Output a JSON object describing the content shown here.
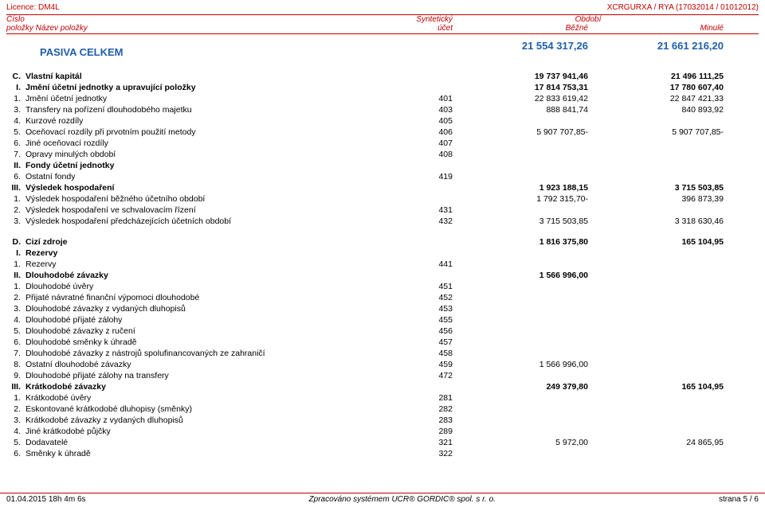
{
  "top_left": "Licence: DM4L",
  "top_right": "XCRGURXA / RYA (17032014 / 01012012)",
  "header": {
    "r1_c1": "Číslo",
    "r1_c2": "Syntetický",
    "r1_c3": "Období",
    "r2_c1": "položky   Název položky",
    "r2_c2": "účet",
    "r2_c3a": "Běžné",
    "r2_c3b": "Minulé"
  },
  "section_title": "PASIVA CELKEM",
  "section_cur": "21 554 317,26",
  "section_prev": "21 661 216,20",
  "rows": [
    {
      "idx": "C.",
      "name": "Vlastní kapitál",
      "acct": "",
      "cur": "19 737 941,46",
      "prev": "21 496 111,25",
      "bold": true
    },
    {
      "idx": "I.",
      "name": "Jmění účetní jednotky a upravující položky",
      "acct": "",
      "cur": "17 814 753,31",
      "prev": "17 780 607,40",
      "bold": true
    },
    {
      "idx": "1.",
      "name": "Jmění účetní jednotky",
      "acct": "401",
      "cur": "22 833 619,42",
      "prev": "22 847 421,33",
      "bold": false
    },
    {
      "idx": "3.",
      "name": "Transfery na pořízení dlouhodobého majetku",
      "acct": "403",
      "cur": "888 841,74",
      "prev": "840 893,92",
      "bold": false
    },
    {
      "idx": "4.",
      "name": "Kurzové rozdíly",
      "acct": "405",
      "cur": "",
      "prev": "",
      "bold": false
    },
    {
      "idx": "5.",
      "name": "Oceňovací rozdíly při prvotním použití metody",
      "acct": "406",
      "cur": "5 907 707,85-",
      "prev": "5 907 707,85-",
      "bold": false
    },
    {
      "idx": "6.",
      "name": "Jiné oceňovací rozdíly",
      "acct": "407",
      "cur": "",
      "prev": "",
      "bold": false
    },
    {
      "idx": "7.",
      "name": "Opravy minulých období",
      "acct": "408",
      "cur": "",
      "prev": "",
      "bold": false
    },
    {
      "idx": "II.",
      "name": "Fondy účetní jednotky",
      "acct": "",
      "cur": "",
      "prev": "",
      "bold": true
    },
    {
      "idx": "6.",
      "name": "Ostatní fondy",
      "acct": "419",
      "cur": "",
      "prev": "",
      "bold": false
    },
    {
      "idx": "III.",
      "name": "Výsledek hospodaření",
      "acct": "",
      "cur": "1 923 188,15",
      "prev": "3 715 503,85",
      "bold": true
    },
    {
      "idx": "1.",
      "name": "Výsledek hospodaření běžného účetního období",
      "acct": "",
      "cur": "1 792 315,70-",
      "prev": "396 873,39",
      "bold": false
    },
    {
      "idx": "2.",
      "name": "Výsledek hospodaření ve schvalovacím řízení",
      "acct": "431",
      "cur": "",
      "prev": "",
      "bold": false
    },
    {
      "idx": "3.",
      "name": "Výsledek hospodaření předcházejících účetních období",
      "acct": "432",
      "cur": "3 715 503,85",
      "prev": "3 318 630,46",
      "bold": false
    }
  ],
  "rows2": [
    {
      "idx": "D.",
      "name": "Cizí zdroje",
      "acct": "",
      "cur": "1 816 375,80",
      "prev": "165 104,95",
      "bold": true
    },
    {
      "idx": "I.",
      "name": "Rezervy",
      "acct": "",
      "cur": "",
      "prev": "",
      "bold": true
    },
    {
      "idx": "1.",
      "name": "Rezervy",
      "acct": "441",
      "cur": "",
      "prev": "",
      "bold": false
    },
    {
      "idx": "II.",
      "name": "Dlouhodobé závazky",
      "acct": "",
      "cur": "1 566 996,00",
      "prev": "",
      "bold": true
    },
    {
      "idx": "1.",
      "name": "Dlouhodobé úvěry",
      "acct": "451",
      "cur": "",
      "prev": "",
      "bold": false
    },
    {
      "idx": "2.",
      "name": "Přijaté návratné finanční výpomoci dlouhodobé",
      "acct": "452",
      "cur": "",
      "prev": "",
      "bold": false
    },
    {
      "idx": "3.",
      "name": "Dlouhodobé závazky z vydaných dluhopisů",
      "acct": "453",
      "cur": "",
      "prev": "",
      "bold": false
    },
    {
      "idx": "4.",
      "name": "Dlouhodobé přijaté zálohy",
      "acct": "455",
      "cur": "",
      "prev": "",
      "bold": false
    },
    {
      "idx": "5.",
      "name": "Dlouhodobé závazky z ručení",
      "acct": "456",
      "cur": "",
      "prev": "",
      "bold": false
    },
    {
      "idx": "6.",
      "name": "Dlouhodobé směnky k úhradě",
      "acct": "457",
      "cur": "",
      "prev": "",
      "bold": false
    },
    {
      "idx": "7.",
      "name": "Dlouhodobé závazky z nástrojů spolufinancovaných ze zahraničí",
      "acct": "458",
      "cur": "",
      "prev": "",
      "bold": false
    },
    {
      "idx": "8.",
      "name": "Ostatní dlouhodobé závazky",
      "acct": "459",
      "cur": "1 566 996,00",
      "prev": "",
      "bold": false
    },
    {
      "idx": "9.",
      "name": "Dlouhodobé přijaté zálohy na transfery",
      "acct": "472",
      "cur": "",
      "prev": "",
      "bold": false
    },
    {
      "idx": "III.",
      "name": "Krátkodobé závazky",
      "acct": "",
      "cur": "249 379,80",
      "prev": "165 104,95",
      "bold": true
    },
    {
      "idx": "1.",
      "name": "Krátkodobé úvěry",
      "acct": "281",
      "cur": "",
      "prev": "",
      "bold": false
    },
    {
      "idx": "2.",
      "name": "Eskontované krátkodobé dluhopisy (směnky)",
      "acct": "282",
      "cur": "",
      "prev": "",
      "bold": false
    },
    {
      "idx": "3.",
      "name": "Krátkodobé závazky z vydaných dluhopisů",
      "acct": "283",
      "cur": "",
      "prev": "",
      "bold": false
    },
    {
      "idx": "4.",
      "name": "Jiné krátkodobé půjčky",
      "acct": "289",
      "cur": "",
      "prev": "",
      "bold": false
    },
    {
      "idx": "5.",
      "name": "Dodavatelé",
      "acct": "321",
      "cur": "5 972,00",
      "prev": "24 865,95",
      "bold": false
    },
    {
      "idx": "6.",
      "name": "Směnky k úhradě",
      "acct": "322",
      "cur": "",
      "prev": "",
      "bold": false
    }
  ],
  "footer": {
    "left": "01.04.2015 18h 4m 6s",
    "mid": "Zpracováno systémem  UCR® GORDIC® spol. s  r. o.",
    "right": "strana 5 / 6"
  }
}
